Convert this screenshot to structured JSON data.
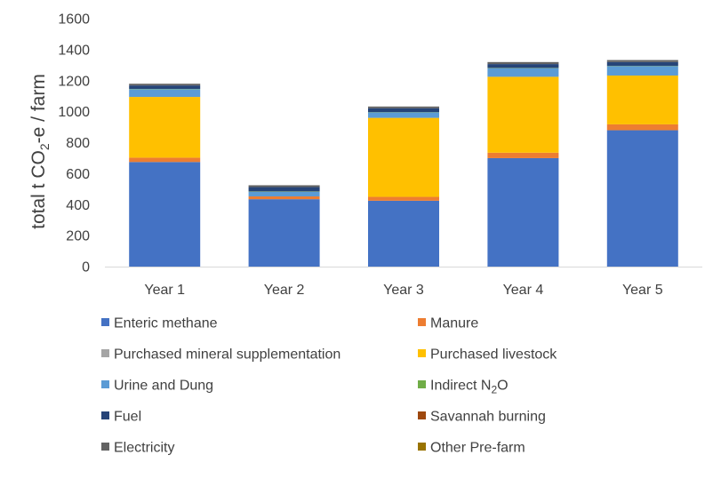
{
  "chart_data": {
    "type": "bar",
    "stacked": true,
    "title": "",
    "xlabel": "",
    "ylabel": "total t CO2-e / farm",
    "ylabel_parts": {
      "pre": "total t CO",
      "sub": "2",
      "post": "-e / farm"
    },
    "ylim": [
      0,
      1600
    ],
    "yticks": [
      "0",
      "200",
      "400",
      "600",
      "800",
      "1000",
      "1200",
      "1400",
      "1600"
    ],
    "grid": false,
    "legend_position": "bottom",
    "categories": [
      "Year 1",
      "Year 2",
      "Year 3",
      "Year 4",
      "Year 5"
    ],
    "series": [
      {
        "name": "Enteric methane",
        "color": "#4472C4",
        "values": [
          675,
          435,
          425,
          700,
          880
        ]
      },
      {
        "name": "Manure",
        "color": "#ED7D31",
        "values": [
          28,
          18,
          25,
          35,
          38
        ]
      },
      {
        "name": "Purchased mineral supplementation",
        "color": "#A5A5A5",
        "values": [
          0,
          0,
          0,
          0,
          0
        ]
      },
      {
        "name": "Purchased livestock",
        "color": "#FFC000",
        "values": [
          392,
          0,
          510,
          490,
          315
        ]
      },
      {
        "name": "Urine and Dung",
        "color": "#5B9BD5",
        "values": [
          50,
          30,
          35,
          55,
          60
        ]
      },
      {
        "name": "Indirect N2O",
        "name_parts": {
          "pre": "Indirect N",
          "sub": "2",
          "post": "O"
        },
        "color": "#70AD47",
        "values": [
          2,
          2,
          2,
          2,
          2
        ]
      },
      {
        "name": "Fuel",
        "color": "#264478",
        "values": [
          22,
          28,
          25,
          25,
          25
        ]
      },
      {
        "name": "Savannah burning",
        "color": "#9E480E",
        "values": [
          0,
          0,
          0,
          0,
          0
        ]
      },
      {
        "name": "Electricity",
        "color": "#636363",
        "values": [
          11,
          12,
          11,
          13,
          13
        ]
      },
      {
        "name": "Other Pre-farm",
        "color": "#997300",
        "values": [
          0,
          0,
          0,
          0,
          0
        ]
      }
    ]
  }
}
